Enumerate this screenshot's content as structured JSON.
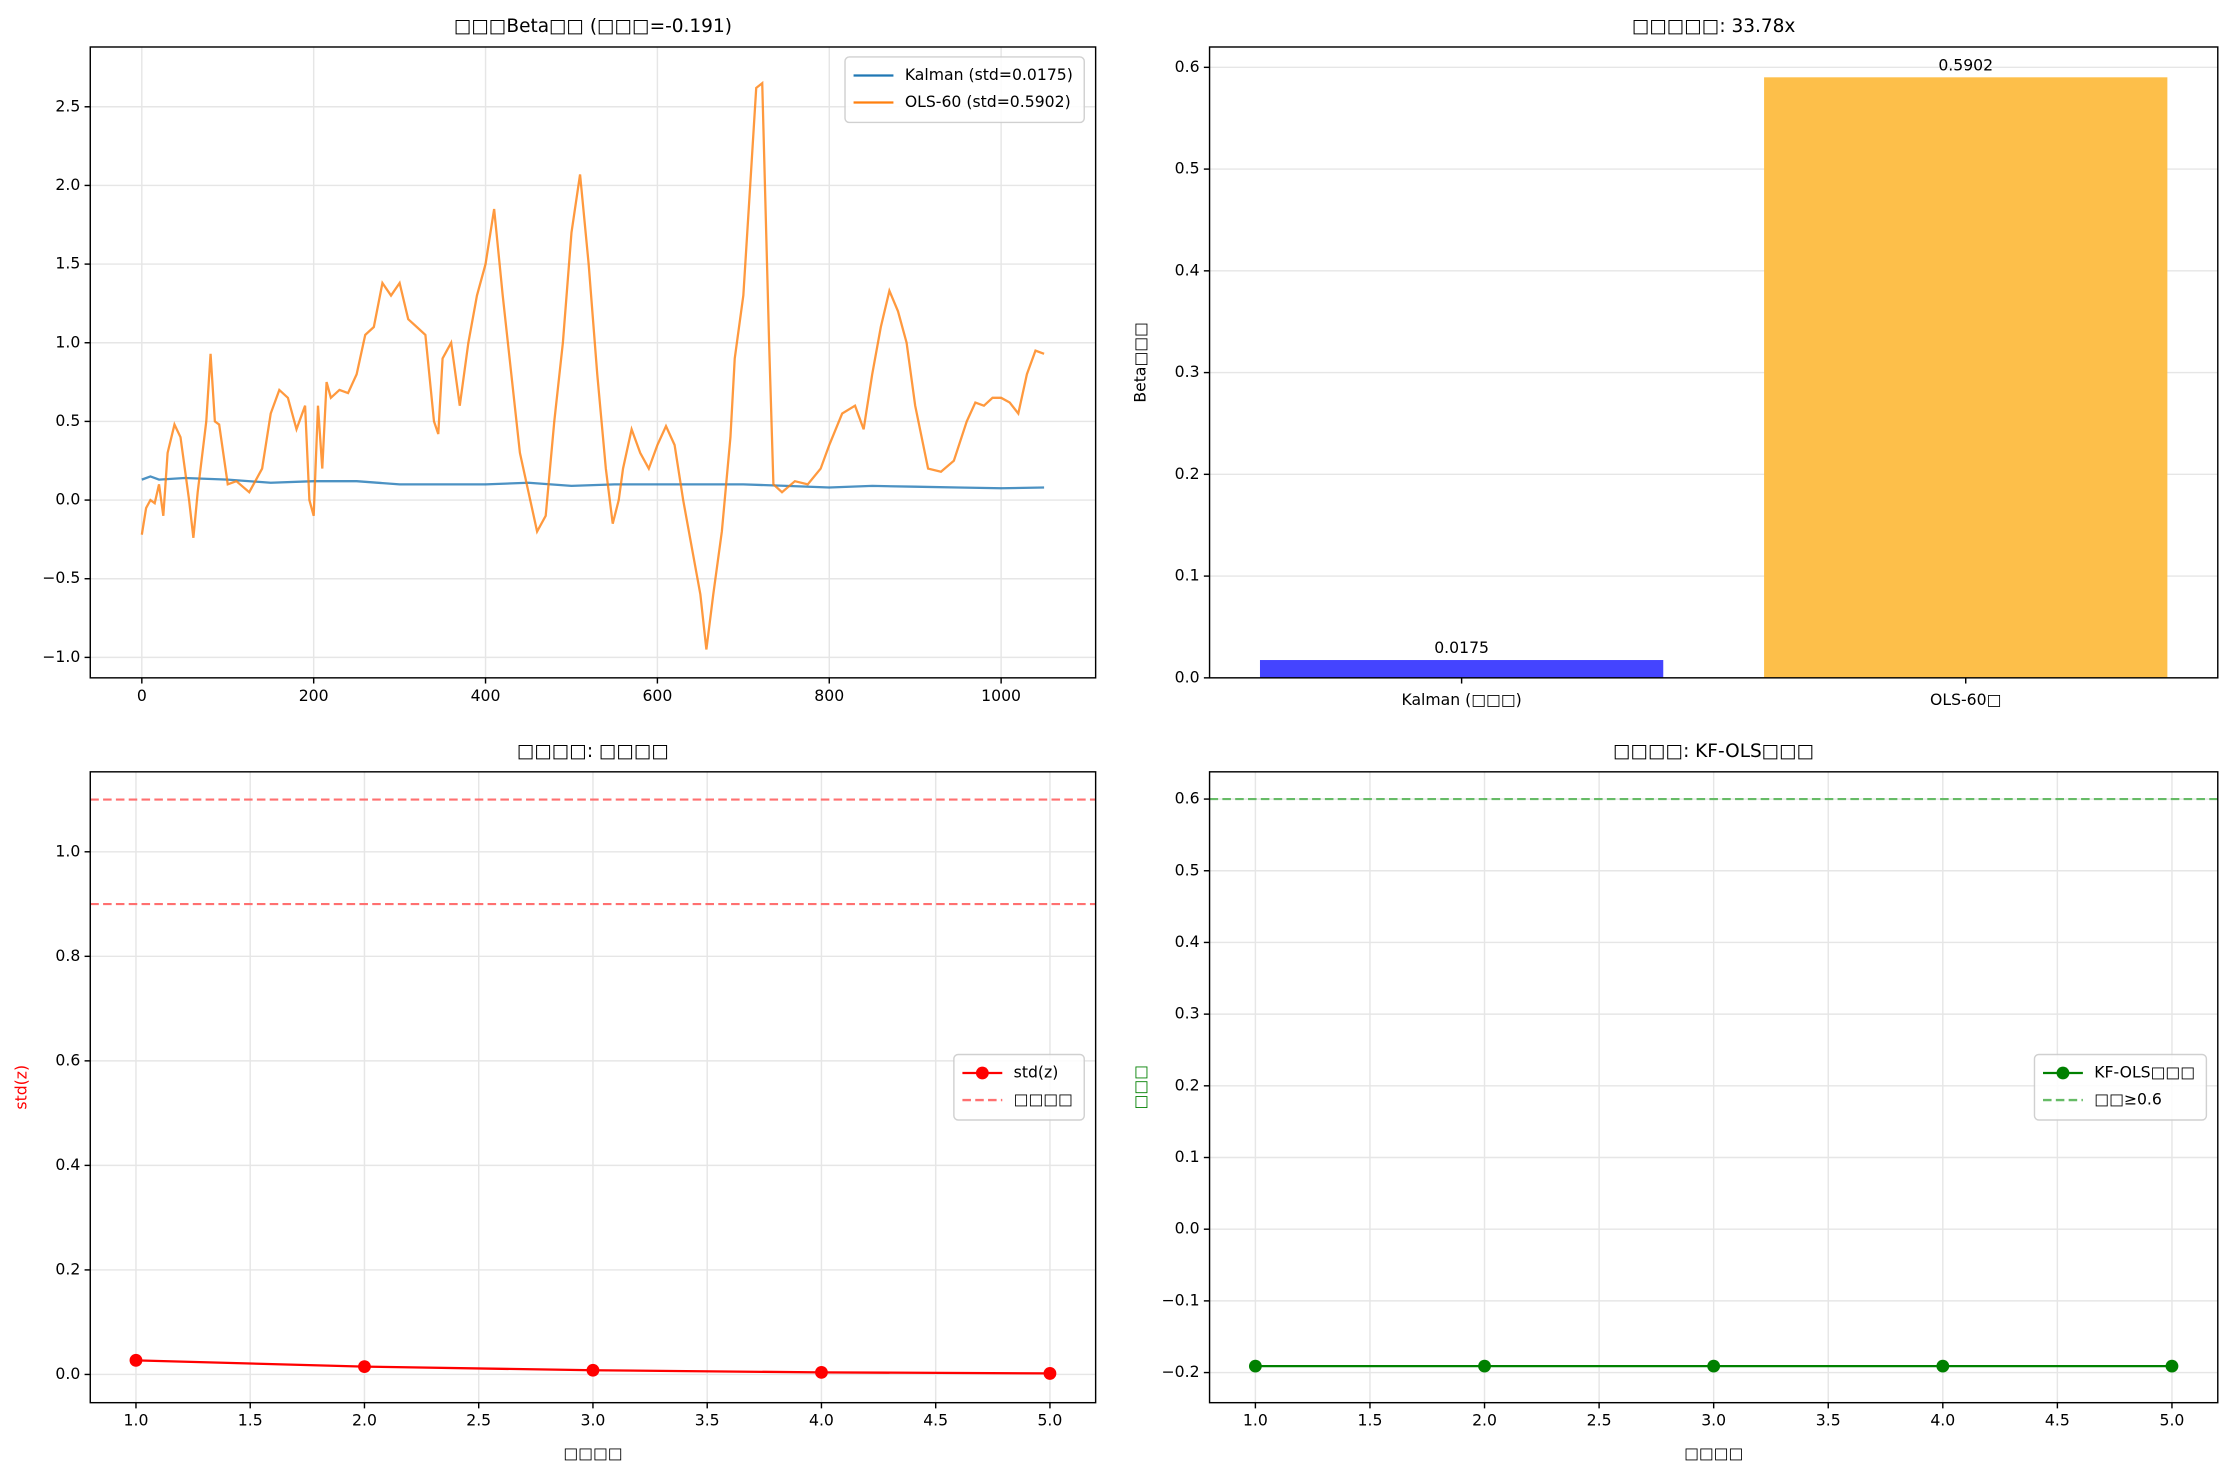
{
  "chart_data": [
    {
      "type": "line",
      "title": "□□□Beta□□ (□□□=-0.191)",
      "grid": true,
      "legend": "upper right",
      "xlim": [
        -60,
        1110
      ],
      "xticks": [
        0,
        200,
        400,
        600,
        800,
        1000
      ],
      "ylim": [
        -1.13,
        2.88
      ],
      "yticks": [
        {
          "value": -1.0,
          "label": "−1.0"
        },
        {
          "value": -0.5,
          "label": "−0.5"
        },
        {
          "value": 0.0,
          "label": "0.0"
        },
        0.5,
        {
          "value": 1.0,
          "label": "1.0"
        },
        1.5,
        {
          "value": 2.0,
          "label": "2.0"
        },
        2.5
      ],
      "series": [
        {
          "name": "Kalman (std=0.0175)",
          "color": "#1f77b4",
          "x": [
            0,
            10,
            20,
            50,
            100,
            150,
            200,
            250,
            300,
            350,
            400,
            450,
            500,
            550,
            600,
            650,
            700,
            750,
            800,
            850,
            900,
            950,
            1000,
            1050
          ],
          "values": [
            0.13,
            0.15,
            0.13,
            0.14,
            0.13,
            0.11,
            0.12,
            0.12,
            0.1,
            0.1,
            0.1,
            0.11,
            0.09,
            0.1,
            0.1,
            0.1,
            0.1,
            0.09,
            0.08,
            0.09,
            0.085,
            0.08,
            0.075,
            0.08
          ]
        },
        {
          "name": "OLS-60 (std=0.5902)",
          "color": "#ff7f0e",
          "x": [
            0,
            5,
            10,
            15,
            20,
            25,
            30,
            38,
            45,
            55,
            60,
            65,
            75,
            80,
            85,
            90,
            100,
            110,
            125,
            140,
            150,
            160,
            170,
            180,
            190,
            195,
            200,
            205,
            210,
            215,
            220,
            230,
            240,
            250,
            260,
            270,
            280,
            290,
            300,
            310,
            320,
            330,
            340,
            345,
            350,
            360,
            370,
            380,
            390,
            400,
            410,
            420,
            430,
            440,
            450,
            460,
            470,
            480,
            490,
            500,
            510,
            520,
            530,
            540,
            548,
            555,
            560,
            570,
            580,
            590,
            600,
            610,
            620,
            630,
            640,
            650,
            657,
            665,
            675,
            685,
            690,
            700,
            708,
            715,
            722,
            730,
            735,
            745,
            760,
            775,
            790,
            800,
            815,
            830,
            840,
            850,
            860,
            870,
            880,
            890,
            900,
            915,
            930,
            945,
            960,
            970,
            980,
            990,
            1000,
            1010,
            1020,
            1030,
            1040,
            1050
          ],
          "values": [
            -0.22,
            -0.05,
            0.0,
            -0.02,
            0.1,
            -0.1,
            0.3,
            0.48,
            0.4,
            0.0,
            -0.24,
            0.05,
            0.5,
            0.93,
            0.5,
            0.48,
            0.1,
            0.12,
            0.05,
            0.2,
            0.55,
            0.7,
            0.65,
            0.45,
            0.6,
            0.0,
            -0.1,
            0.6,
            0.2,
            0.75,
            0.65,
            0.7,
            0.68,
            0.8,
            1.05,
            1.1,
            1.38,
            1.3,
            1.38,
            1.15,
            1.1,
            1.05,
            0.5,
            0.42,
            0.9,
            1.0,
            0.6,
            1.0,
            1.3,
            1.5,
            1.85,
            1.3,
            0.8,
            0.3,
            0.05,
            -0.2,
            -0.1,
            0.5,
            1.0,
            1.7,
            2.07,
            1.5,
            0.8,
            0.2,
            -0.15,
            0.0,
            0.2,
            0.45,
            0.3,
            0.2,
            0.35,
            0.47,
            0.35,
            0.0,
            -0.3,
            -0.6,
            -0.95,
            -0.6,
            -0.2,
            0.4,
            0.9,
            1.3,
            2.0,
            2.62,
            2.65,
            1.0,
            0.1,
            0.05,
            0.12,
            0.1,
            0.2,
            0.35,
            0.55,
            0.6,
            0.45,
            0.8,
            1.1,
            1.33,
            1.2,
            1.0,
            0.6,
            0.2,
            0.18,
            0.25,
            0.5,
            0.62,
            0.6,
            0.65,
            0.65,
            0.62,
            0.55,
            0.8,
            0.95,
            0.93
          ]
        }
      ]
    },
    {
      "type": "bar",
      "title": "□□□□□: 33.78x",
      "grid": true,
      "ylabel": "Beta□□□",
      "categories": [
        "Kalman (□□□)",
        "OLS-60□"
      ],
      "values": [
        0.0175,
        0.5902
      ],
      "value_labels": [
        "0.0175",
        "0.5902"
      ],
      "colors": [
        "#4444ff",
        "#fdbf4a"
      ],
      "ylim": [
        0,
        0.62
      ],
      "yticks": [
        {
          "value": 0.0,
          "label": "0.0"
        },
        0.1,
        0.2,
        0.3,
        0.4,
        0.5,
        0.6
      ]
    },
    {
      "type": "line",
      "title": "□□□□: □□□□",
      "grid": true,
      "legend": "center right",
      "xlabel": "□□□□",
      "ylabel": "std(z)",
      "ylabel_color": "#ff0000",
      "x": [
        1,
        2,
        3,
        4,
        5
      ],
      "xlim": [
        0.8,
        5.2
      ],
      "xticks": [
        {
          "value": 1.0,
          "label": "1.0"
        },
        1.5,
        {
          "value": 2.0,
          "label": "2.0"
        },
        2.5,
        {
          "value": 3.0,
          "label": "3.0"
        },
        3.5,
        {
          "value": 4.0,
          "label": "4.0"
        },
        4.5,
        {
          "value": 5.0,
          "label": "5.0"
        }
      ],
      "ylim": [
        -0.054,
        1.153
      ],
      "yticks": [
        {
          "value": 0.0,
          "label": "0.0"
        },
        0.2,
        0.4,
        0.6,
        0.8,
        {
          "value": 1.0,
          "label": "1.0"
        }
      ],
      "series": [
        {
          "name": "std(z)",
          "color": "#ff0000",
          "marker": true,
          "values": [
            0.027,
            0.015,
            0.008,
            0.004,
            0.002
          ]
        }
      ],
      "reference_lines": {
        "name": "□□□□",
        "color": "#ff7070",
        "values": [
          1.1,
          0.9
        ]
      }
    },
    {
      "type": "line",
      "title": "□□□□: KF-OLS□□□",
      "grid": true,
      "legend": "center right",
      "xlabel": "□□□□",
      "ylabel": "□□□",
      "ylabel_color": "#008000",
      "x": [
        1,
        2,
        3,
        4,
        5
      ],
      "xlim": [
        0.8,
        5.2
      ],
      "xticks": [
        {
          "value": 1.0,
          "label": "1.0"
        },
        1.5,
        {
          "value": 2.0,
          "label": "2.0"
        },
        2.5,
        {
          "value": 3.0,
          "label": "3.0"
        },
        3.5,
        {
          "value": 4.0,
          "label": "4.0"
        },
        4.5,
        {
          "value": 5.0,
          "label": "5.0"
        }
      ],
      "ylim": [
        -0.242,
        0.638
      ],
      "yticks": [
        {
          "value": -0.2,
          "label": "−0.2"
        },
        {
          "value": -0.1,
          "label": "−0.1"
        },
        {
          "value": 0.0,
          "label": "0.0"
        },
        0.1,
        0.2,
        0.3,
        0.4,
        0.5,
        0.6
      ],
      "series": [
        {
          "name": "KF-OLS□□□",
          "color": "#008000",
          "marker": true,
          "values": [
            -0.191,
            -0.191,
            -0.191,
            -0.191,
            -0.191
          ]
        }
      ],
      "reference_lines": {
        "name": "□□≥0.6",
        "color": "#66bb66",
        "values": [
          0.6
        ]
      }
    }
  ]
}
